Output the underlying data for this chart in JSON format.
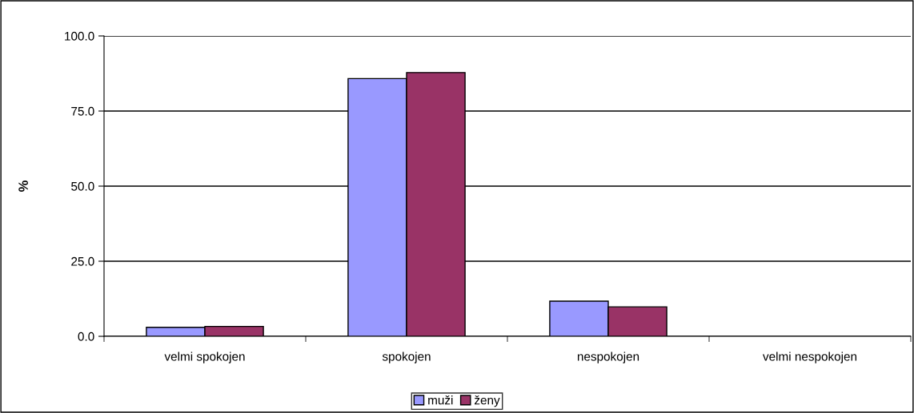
{
  "chart_data": {
    "type": "bar",
    "ylabel": "%",
    "categories": [
      "velmi spokojen",
      "spokojen",
      "nespokojen",
      "velmi nespokojen"
    ],
    "series": [
      {
        "name": "muži",
        "color": "#9999ff",
        "values": [
          3.0,
          85.8,
          11.7,
          null
        ]
      },
      {
        "name": "ženy",
        "color": "#993366",
        "values": [
          3.3,
          87.8,
          9.8,
          null
        ]
      }
    ],
    "ylim": [
      0,
      100
    ],
    "yticks": [
      {
        "value": 0,
        "label": "0.0"
      },
      {
        "value": 25,
        "label": "25.0"
      },
      {
        "value": 50,
        "label": "50.0"
      },
      {
        "value": 75,
        "label": "75.0"
      },
      {
        "value": 100,
        "label": "100.0"
      }
    ],
    "grid": "y",
    "legend": "bottom"
  }
}
